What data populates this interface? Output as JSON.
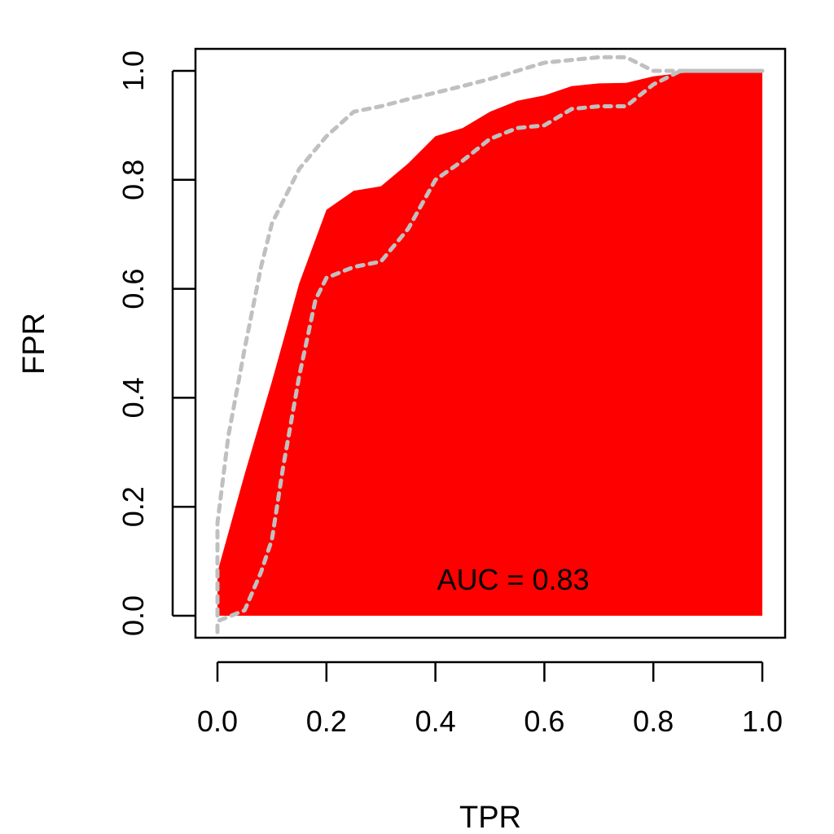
{
  "chart_data": {
    "type": "area",
    "title": "",
    "xlabel": "TPR",
    "ylabel": "FPR",
    "xlim": [
      0,
      1
    ],
    "ylim": [
      0,
      1
    ],
    "xticks": [
      "0.0",
      "0.2",
      "0.4",
      "0.6",
      "0.8",
      "1.0"
    ],
    "yticks": [
      "0.0",
      "0.2",
      "0.4",
      "0.6",
      "0.8",
      "1.0"
    ],
    "grid": false,
    "annotation": "AUC = 0.83",
    "colors": {
      "fill": "#ff0000",
      "bands": "#c0c0c0",
      "axis": "#000000"
    },
    "series": [
      {
        "role": "estimate",
        "style": "filled-area",
        "x": [
          0.0,
          0.0,
          0.05,
          0.1,
          0.15,
          0.2,
          0.25,
          0.3,
          0.35,
          0.4,
          0.45,
          0.5,
          0.55,
          0.6,
          0.65,
          0.7,
          0.75,
          0.8,
          0.85,
          0.9,
          0.95,
          1.0,
          1.0
        ],
        "y": [
          0.0,
          0.08,
          0.26,
          0.43,
          0.61,
          0.745,
          0.78,
          0.788,
          0.83,
          0.88,
          0.895,
          0.925,
          0.945,
          0.955,
          0.972,
          0.977,
          0.978,
          0.99,
          0.996,
          0.998,
          0.998,
          0.998,
          0.0
        ]
      },
      {
        "role": "upper-band",
        "style": "dotted",
        "x": [
          0.0,
          0.0,
          0.02,
          0.05,
          0.08,
          0.1,
          0.15,
          0.2,
          0.25,
          0.3,
          0.35,
          0.4,
          0.45,
          0.5,
          0.55,
          0.6,
          0.65,
          0.7,
          0.75,
          0.8,
          0.85,
          0.9,
          0.95,
          1.0
        ],
        "y": [
          0.0,
          0.17,
          0.33,
          0.49,
          0.64,
          0.72,
          0.82,
          0.88,
          0.925,
          0.935,
          0.948,
          0.96,
          0.972,
          0.985,
          1.0,
          1.015,
          1.02,
          1.025,
          1.025,
          1.0,
          1.0,
          1.0,
          1.0,
          1.0
        ]
      },
      {
        "role": "lower-band",
        "style": "dotted",
        "x": [
          0.0,
          0.0,
          0.05,
          0.08,
          0.1,
          0.12,
          0.15,
          0.18,
          0.2,
          0.25,
          0.3,
          0.35,
          0.4,
          0.45,
          0.5,
          0.55,
          0.6,
          0.65,
          0.7,
          0.75,
          0.8,
          0.85,
          0.9,
          0.95,
          1.0
        ],
        "y": [
          -0.03,
          -0.01,
          0.01,
          0.08,
          0.14,
          0.27,
          0.44,
          0.58,
          0.62,
          0.64,
          0.65,
          0.71,
          0.8,
          0.835,
          0.875,
          0.895,
          0.9,
          0.93,
          0.935,
          0.935,
          0.975,
          1.0,
          1.0,
          1.0,
          1.0
        ]
      }
    ]
  }
}
